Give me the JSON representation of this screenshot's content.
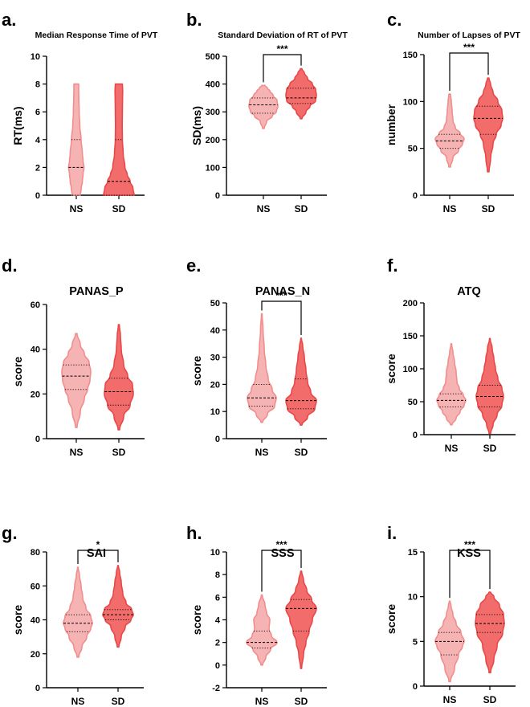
{
  "colors": {
    "ns_fill": "#f6b3b3",
    "ns_stroke": "#f28d8d",
    "sd_fill": "#f26c6c",
    "sd_stroke": "#e84848",
    "axis": "#000000"
  },
  "chart_data": [
    {
      "letter": "a.",
      "type": "violin",
      "title": "Median Response Time of PVT",
      "ylabel": "RT(ms)",
      "ylim": [
        0,
        10
      ],
      "yticks": [
        0,
        2,
        4,
        6,
        8,
        10
      ],
      "categories": [
        "NS",
        "SD"
      ],
      "sig": null,
      "series": [
        {
          "name": "NS",
          "min": 0,
          "max": 8,
          "median": 2,
          "q1": 0,
          "q3": 4,
          "profile": [
            [
              0,
              0.25
            ],
            [
              0.5,
              0.31
            ],
            [
              1,
              0.38
            ],
            [
              1.5,
              0.42
            ],
            [
              2,
              0.48
            ],
            [
              2.5,
              0.42
            ],
            [
              3,
              0.38
            ],
            [
              4,
              0.3
            ],
            [
              5,
              0.22
            ],
            [
              6,
              0.18
            ],
            [
              7,
              0.16
            ],
            [
              7.5,
              0.15
            ],
            [
              8,
              0.15
            ]
          ]
        },
        {
          "name": "SD",
          "min": 0,
          "max": 8,
          "median": 1,
          "q1": 0,
          "q3": 4,
          "profile": [
            [
              0,
              0.95
            ],
            [
              0.5,
              0.88
            ],
            [
              1,
              0.7
            ],
            [
              1.5,
              0.52
            ],
            [
              2,
              0.38
            ],
            [
              3,
              0.27
            ],
            [
              4,
              0.22
            ],
            [
              5,
              0.21
            ],
            [
              6,
              0.22
            ],
            [
              7,
              0.23
            ],
            [
              7.5,
              0.24
            ],
            [
              8,
              0.22
            ]
          ]
        }
      ]
    },
    {
      "letter": "b.",
      "type": "violin",
      "title": "Standard Deviation of RT of PVT",
      "ylabel": "SD(ms)",
      "ylim": [
        0,
        500
      ],
      "yticks": [
        0,
        100,
        200,
        300,
        400,
        500
      ],
      "categories": [
        "NS",
        "SD"
      ],
      "sig": "***",
      "series": [
        {
          "name": "NS",
          "min": 240,
          "max": 395,
          "median": 325,
          "q1": 295,
          "q3": 350,
          "profile": [
            [
              240,
              0.05
            ],
            [
              265,
              0.2
            ],
            [
              285,
              0.55
            ],
            [
              300,
              0.8
            ],
            [
              320,
              0.9
            ],
            [
              340,
              0.85
            ],
            [
              360,
              0.6
            ],
            [
              375,
              0.4
            ],
            [
              385,
              0.25
            ],
            [
              395,
              0.1
            ]
          ]
        },
        {
          "name": "SD",
          "min": 275,
          "max": 455,
          "median": 350,
          "q1": 330,
          "q3": 385,
          "profile": [
            [
              275,
              0.05
            ],
            [
              300,
              0.3
            ],
            [
              320,
              0.55
            ],
            [
              340,
              0.9
            ],
            [
              360,
              0.95
            ],
            [
              380,
              0.9
            ],
            [
              400,
              0.7
            ],
            [
              420,
              0.4
            ],
            [
              440,
              0.2
            ],
            [
              455,
              0.05
            ]
          ]
        }
      ]
    },
    {
      "letter": "c.",
      "type": "violin",
      "title": "Number of Lapses of PVT",
      "ylabel": "number",
      "ylim": [
        0,
        150
      ],
      "yticks": [
        0,
        50,
        100,
        150
      ],
      "categories": [
        "NS",
        "SD"
      ],
      "sig": "***",
      "series": [
        {
          "name": "NS",
          "min": 30,
          "max": 108,
          "median": 58,
          "q1": 50,
          "q3": 65,
          "profile": [
            [
              30,
              0.05
            ],
            [
              40,
              0.2
            ],
            [
              48,
              0.55
            ],
            [
              55,
              0.8
            ],
            [
              60,
              0.9
            ],
            [
              66,
              0.65
            ],
            [
              72,
              0.35
            ],
            [
              80,
              0.2
            ],
            [
              90,
              0.15
            ],
            [
              100,
              0.1
            ],
            [
              108,
              0.05
            ]
          ]
        },
        {
          "name": "SD",
          "min": 25,
          "max": 125,
          "median": 82,
          "q1": 65,
          "q3": 95,
          "profile": [
            [
              25,
              0.05
            ],
            [
              40,
              0.15
            ],
            [
              55,
              0.3
            ],
            [
              65,
              0.5
            ],
            [
              75,
              0.8
            ],
            [
              82,
              0.9
            ],
            [
              90,
              0.85
            ],
            [
              100,
              0.6
            ],
            [
              110,
              0.3
            ],
            [
              118,
              0.15
            ],
            [
              125,
              0.05
            ]
          ]
        }
      ]
    },
    {
      "letter": "d.",
      "type": "violin",
      "title": "PANAS_P",
      "ylabel": "score",
      "ylim": [
        0,
        60
      ],
      "yticks": [
        0,
        20,
        40,
        60
      ],
      "categories": [
        "NS",
        "SD"
      ],
      "sig": null,
      "series": [
        {
          "name": "NS",
          "min": 5,
          "max": 47,
          "median": 28,
          "q1": 22,
          "q3": 33,
          "profile": [
            [
              5,
              0.05
            ],
            [
              12,
              0.25
            ],
            [
              18,
              0.5
            ],
            [
              22,
              0.7
            ],
            [
              26,
              0.85
            ],
            [
              30,
              0.9
            ],
            [
              34,
              0.8
            ],
            [
              38,
              0.5
            ],
            [
              42,
              0.25
            ],
            [
              47,
              0.05
            ]
          ]
        },
        {
          "name": "SD",
          "min": 4,
          "max": 51,
          "median": 21,
          "q1": 15,
          "q3": 27,
          "profile": [
            [
              4,
              0.05
            ],
            [
              10,
              0.3
            ],
            [
              15,
              0.7
            ],
            [
              20,
              0.9
            ],
            [
              24,
              0.85
            ],
            [
              28,
              0.55
            ],
            [
              33,
              0.3
            ],
            [
              40,
              0.15
            ],
            [
              46,
              0.1
            ],
            [
              51,
              0.03
            ]
          ]
        }
      ]
    },
    {
      "letter": "e.",
      "type": "violin",
      "title": "PANAS_N",
      "ylabel": "score",
      "ylim": [
        0,
        50
      ],
      "yticks": [
        0,
        10,
        20,
        30,
        40,
        50
      ],
      "categories": [
        "NS",
        "SD"
      ],
      "sig": "***",
      "series": [
        {
          "name": "NS",
          "min": 6,
          "max": 46,
          "median": 15,
          "q1": 12,
          "q3": 20,
          "profile": [
            [
              6,
              0.05
            ],
            [
              9,
              0.35
            ],
            [
              12,
              0.8
            ],
            [
              15,
              0.9
            ],
            [
              18,
              0.65
            ],
            [
              22,
              0.4
            ],
            [
              27,
              0.25
            ],
            [
              33,
              0.15
            ],
            [
              40,
              0.08
            ],
            [
              46,
              0.02
            ]
          ]
        },
        {
          "name": "SD",
          "min": 5,
          "max": 37,
          "median": 14,
          "q1": 11,
          "q3": 22,
          "profile": [
            [
              5,
              0.05
            ],
            [
              8,
              0.4
            ],
            [
              11,
              0.85
            ],
            [
              14,
              0.95
            ],
            [
              17,
              0.6
            ],
            [
              21,
              0.4
            ],
            [
              25,
              0.3
            ],
            [
              30,
              0.2
            ],
            [
              34,
              0.1
            ],
            [
              37,
              0.02
            ]
          ]
        }
      ]
    },
    {
      "letter": "f.",
      "type": "violin",
      "title": "ATQ",
      "ylabel": "score",
      "ylim": [
        0,
        200
      ],
      "yticks": [
        0,
        50,
        100,
        150,
        200
      ],
      "categories": [
        "NS",
        "SD"
      ],
      "sig": null,
      "series": [
        {
          "name": "NS",
          "min": 15,
          "max": 138,
          "median": 52,
          "q1": 42,
          "q3": 62,
          "profile": [
            [
              15,
              0.05
            ],
            [
              25,
              0.3
            ],
            [
              35,
              0.55
            ],
            [
              45,
              0.8
            ],
            [
              52,
              0.9
            ],
            [
              60,
              0.75
            ],
            [
              70,
              0.5
            ],
            [
              80,
              0.35
            ],
            [
              95,
              0.3
            ],
            [
              110,
              0.2
            ],
            [
              125,
              0.1
            ],
            [
              138,
              0.02
            ]
          ]
        },
        {
          "name": "SD",
          "min": 2,
          "max": 146,
          "median": 58,
          "q1": 42,
          "q3": 75,
          "profile": [
            [
              2,
              0.05
            ],
            [
              15,
              0.2
            ],
            [
              30,
              0.45
            ],
            [
              45,
              0.75
            ],
            [
              58,
              0.85
            ],
            [
              70,
              0.75
            ],
            [
              85,
              0.5
            ],
            [
              100,
              0.35
            ],
            [
              115,
              0.25
            ],
            [
              130,
              0.15
            ],
            [
              146,
              0.02
            ]
          ]
        }
      ]
    },
    {
      "letter": "g.",
      "type": "violin",
      "title": "SAI",
      "ylabel": "score",
      "ylim": [
        0,
        80
      ],
      "yticks": [
        0,
        20,
        40,
        60,
        80
      ],
      "categories": [
        "NS",
        "SD"
      ],
      "sig": "*",
      "series": [
        {
          "name": "NS",
          "min": 18,
          "max": 71,
          "median": 38,
          "q1": 33,
          "q3": 43,
          "profile": [
            [
              18,
              0.05
            ],
            [
              24,
              0.25
            ],
            [
              30,
              0.55
            ],
            [
              35,
              0.8
            ],
            [
              38,
              0.9
            ],
            [
              42,
              0.8
            ],
            [
              47,
              0.5
            ],
            [
              53,
              0.3
            ],
            [
              60,
              0.2
            ],
            [
              66,
              0.1
            ],
            [
              71,
              0.02
            ]
          ]
        },
        {
          "name": "SD",
          "min": 24,
          "max": 72,
          "median": 43,
          "q1": 40,
          "q3": 46,
          "profile": [
            [
              24,
              0.05
            ],
            [
              30,
              0.2
            ],
            [
              36,
              0.45
            ],
            [
              40,
              0.8
            ],
            [
              43,
              0.95
            ],
            [
              46,
              0.85
            ],
            [
              50,
              0.5
            ],
            [
              55,
              0.3
            ],
            [
              62,
              0.2
            ],
            [
              68,
              0.1
            ],
            [
              72,
              0.02
            ]
          ]
        }
      ]
    },
    {
      "letter": "h.",
      "type": "violin",
      "title": "SSS",
      "ylabel": "score",
      "ylim": [
        -2,
        10
      ],
      "yticks": [
        -2,
        0,
        2,
        4,
        6,
        8,
        10
      ],
      "categories": [
        "NS",
        "SD"
      ],
      "sig": "***",
      "series": [
        {
          "name": "NS",
          "min": 0,
          "max": 6.2,
          "median": 2,
          "q1": 1.5,
          "q3": 3,
          "profile": [
            [
              0,
              0.05
            ],
            [
              0.7,
              0.25
            ],
            [
              1.4,
              0.55
            ],
            [
              2,
              0.95
            ],
            [
              2.6,
              0.6
            ],
            [
              3.2,
              0.45
            ],
            [
              4,
              0.5
            ],
            [
              4.6,
              0.3
            ],
            [
              5.3,
              0.2
            ],
            [
              6.2,
              0.03
            ]
          ]
        },
        {
          "name": "SD",
          "min": -0.3,
          "max": 8.3,
          "median": 5,
          "q1": 3,
          "q3": 5.8,
          "profile": [
            [
              -0.3,
              0.03
            ],
            [
              1,
              0.15
            ],
            [
              2,
              0.3
            ],
            [
              3,
              0.5
            ],
            [
              4,
              0.7
            ],
            [
              5,
              0.95
            ],
            [
              5.8,
              0.65
            ],
            [
              6.6,
              0.35
            ],
            [
              7.5,
              0.15
            ],
            [
              8.3,
              0.03
            ]
          ]
        }
      ]
    },
    {
      "letter": "i.",
      "type": "violin",
      "title": "KSS",
      "ylabel": "score",
      "ylim": [
        0,
        15
      ],
      "yticks": [
        0,
        5,
        10,
        15
      ],
      "categories": [
        "NS",
        "SD"
      ],
      "sig": "***",
      "series": [
        {
          "name": "NS",
          "min": 0.5,
          "max": 9.5,
          "median": 5,
          "q1": 3.5,
          "q3": 6,
          "profile": [
            [
              0.5,
              0.05
            ],
            [
              2,
              0.3
            ],
            [
              3.5,
              0.55
            ],
            [
              4.5,
              0.8
            ],
            [
              5,
              0.9
            ],
            [
              6,
              0.7
            ],
            [
              7,
              0.4
            ],
            [
              8,
              0.2
            ],
            [
              9,
              0.08
            ],
            [
              9.5,
              0.02
            ]
          ]
        },
        {
          "name": "SD",
          "min": 1.5,
          "max": 10.5,
          "median": 7,
          "q1": 6,
          "q3": 8,
          "profile": [
            [
              1.5,
              0.05
            ],
            [
              3,
              0.25
            ],
            [
              4.5,
              0.45
            ],
            [
              6,
              0.8
            ],
            [
              7,
              0.9
            ],
            [
              8,
              0.85
            ],
            [
              9,
              0.6
            ],
            [
              10,
              0.25
            ],
            [
              10.5,
              0.05
            ]
          ]
        }
      ]
    }
  ]
}
